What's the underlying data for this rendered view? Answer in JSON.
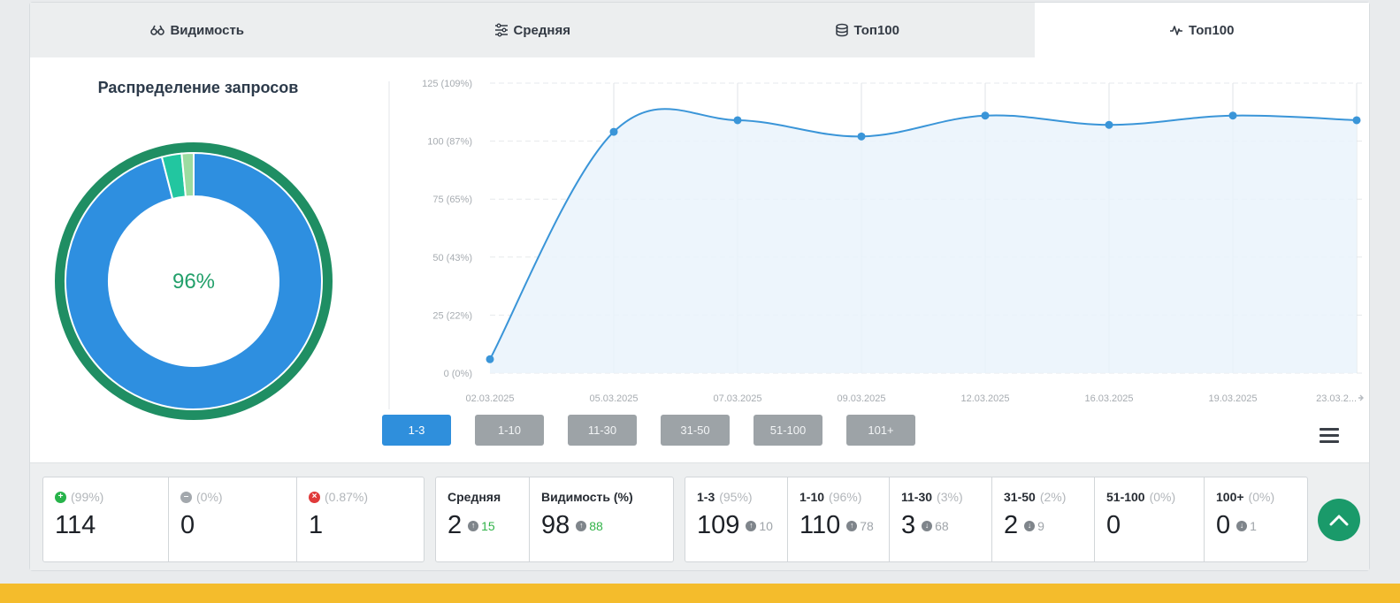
{
  "tabs": [
    {
      "label": "Видимость",
      "icon": "binoculars-icon",
      "active": false
    },
    {
      "label": "Средняя",
      "icon": "sliders-icon",
      "active": false
    },
    {
      "label": "Топ100",
      "icon": "database-icon",
      "active": false
    },
    {
      "label": "Топ100",
      "icon": "pulse-icon",
      "active": true
    }
  ],
  "donut": {
    "title": "Распределение запросов",
    "center_label": "96%",
    "segments": [
      {
        "value": 96,
        "color": "#2e8fe0"
      },
      {
        "value": 2.5,
        "color": "#22c6a0"
      },
      {
        "value": 1.5,
        "color": "#9cdca0"
      }
    ],
    "ring_color": "#1f8e63"
  },
  "chart_data": {
    "type": "area",
    "x": [
      "02.03.2025",
      "05.03.2025",
      "07.03.2025",
      "09.03.2025",
      "12.03.2025",
      "16.03.2025",
      "19.03.2025",
      "23.03.2025"
    ],
    "x_tick_labels": [
      "02.03.2025",
      "05.03.2025",
      "07.03.2025",
      "09.03.2025",
      "12.03.2025",
      "16.03.2025",
      "19.03.2025",
      "23.03.2..."
    ],
    "series": [
      {
        "values": [
          6,
          104,
          109,
          102,
          111,
          107,
          111,
          109
        ],
        "color": "#3a95d8"
      }
    ],
    "y_ticks": [
      "0 (0%)",
      "25 (22%)",
      "50 (43%)",
      "75 (65%)",
      "100 (87%)",
      "125 (109%)"
    ],
    "ylim": [
      0,
      125
    ],
    "grid": true
  },
  "range_buttons": [
    {
      "label": "1-3",
      "active": true
    },
    {
      "label": "1-10",
      "active": false
    },
    {
      "label": "11-30",
      "active": false
    },
    {
      "label": "31-50",
      "active": false
    },
    {
      "label": "51-100",
      "active": false
    },
    {
      "label": "101+",
      "active": false
    }
  ],
  "stats": {
    "changes": [
      {
        "pct": "(99%)",
        "value": "114",
        "icon": "plus-circle-icon"
      },
      {
        "pct": "(0%)",
        "value": "0",
        "icon": "minus-circle-icon"
      },
      {
        "pct": "(0.87%)",
        "value": "1",
        "icon": "close-circle-icon"
      }
    ],
    "average": {
      "label": "Средняя",
      "value": "2",
      "delta": "15"
    },
    "visibility": {
      "label": "Видимость (%)",
      "value": "98",
      "delta": "88"
    },
    "tops": [
      {
        "label": "1-3",
        "pct": "(95%)",
        "value": "109",
        "prev": "10"
      },
      {
        "label": "1-10",
        "pct": "(96%)",
        "value": "110",
        "prev": "78"
      },
      {
        "label": "11-30",
        "pct": "(3%)",
        "value": "3",
        "prev": "68"
      },
      {
        "label": "31-50",
        "pct": "(2%)",
        "value": "2",
        "prev": "9"
      },
      {
        "label": "51-100",
        "pct": "(0%)",
        "value": "0",
        "prev": ""
      },
      {
        "label": "100+",
        "pct": "(0%)",
        "value": "0",
        "prev": "1"
      }
    ]
  }
}
